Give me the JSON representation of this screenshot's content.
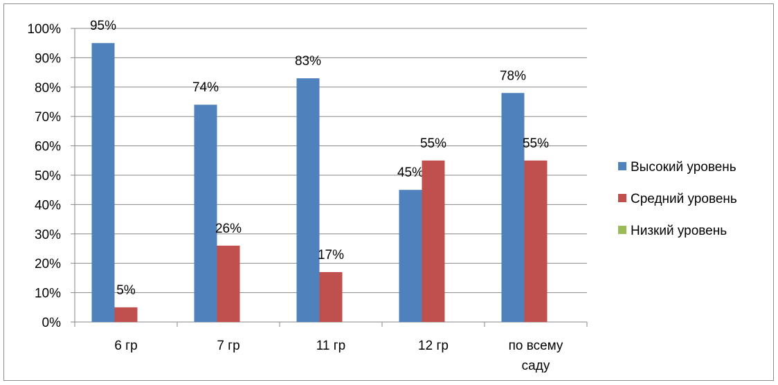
{
  "chart_data": {
    "type": "bar",
    "categories": [
      [
        "6 гр"
      ],
      [
        "7 гр"
      ],
      [
        "11 гр"
      ],
      [
        "12 гр"
      ],
      [
        "по всему",
        "саду"
      ]
    ],
    "series": [
      {
        "name": "Высокий уровень",
        "color": "#4F81BD",
        "values": [
          95,
          74,
          83,
          45,
          78
        ],
        "labels": [
          "95%",
          "74%",
          "83%",
          "45%",
          "78%"
        ]
      },
      {
        "name": "Средний уровень",
        "color": "#C0504D",
        "values": [
          5,
          26,
          17,
          55,
          55
        ],
        "labels": [
          "5%",
          "26%",
          "17%",
          "55%",
          "55%"
        ]
      },
      {
        "name": "Низкий уровень",
        "color": "#9BBB59",
        "values": [
          null,
          null,
          null,
          null,
          null
        ],
        "labels": [
          "",
          "",
          "",
          "",
          ""
        ]
      }
    ],
    "ylim": [
      0,
      100
    ],
    "yticks": [
      "0%",
      "10%",
      "20%",
      "30%",
      "40%",
      "50%",
      "60%",
      "70%",
      "80%",
      "90%",
      "100%"
    ],
    "grid": true,
    "legend": "right"
  }
}
